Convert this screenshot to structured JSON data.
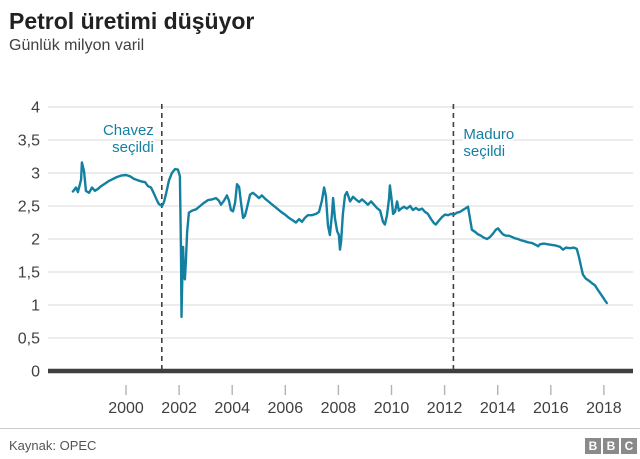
{
  "header": {
    "title": "Petrol üretimi düşüyor",
    "subtitle": "Günlük milyon varil"
  },
  "footer": {
    "source": "Kaynak: OPEC",
    "logo_letters": [
      "B",
      "B",
      "C"
    ]
  },
  "colors": {
    "line": "#1380a1",
    "annotation_text": "#1380a1",
    "grid": "#e0e0e0",
    "baseline": "#3f3f3f",
    "tick": "#b3b3b3",
    "axis_text": "#404040",
    "dashed_line": "#404040"
  },
  "chart_data": {
    "type": "line",
    "title": "Petrol üretimi düşüyor",
    "ylabel": "Günlük milyon varil",
    "xlabel": "",
    "x_range": [
      1997.05,
      2019.1
    ],
    "y_range": [
      0,
      4
    ],
    "grid": "horizontal",
    "legend": "none",
    "line_color": "#1380a1",
    "x_ticks": [
      {
        "value": 2000,
        "label": "2000"
      },
      {
        "value": 2002,
        "label": "2002"
      },
      {
        "value": 2004,
        "label": "2004"
      },
      {
        "value": 2006,
        "label": "2006"
      },
      {
        "value": 2008,
        "label": "2008"
      },
      {
        "value": 2010,
        "label": "2010"
      },
      {
        "value": 2012,
        "label": "2012"
      },
      {
        "value": 2014,
        "label": "2014"
      },
      {
        "value": 2016,
        "label": "2016"
      },
      {
        "value": 2018,
        "label": "2018"
      }
    ],
    "y_ticks": [
      {
        "value": 0,
        "label": "0"
      },
      {
        "value": 0.5,
        "label": "0,5"
      },
      {
        "value": 1,
        "label": "1"
      },
      {
        "value": 1.5,
        "label": "1,5"
      },
      {
        "value": 2,
        "label": "2"
      },
      {
        "value": 2.5,
        "label": "2,5"
      },
      {
        "value": 3,
        "label": "3"
      },
      {
        "value": 3.5,
        "label": "3,5"
      },
      {
        "value": 4,
        "label": "4"
      }
    ],
    "annotations": [
      {
        "label_lines": [
          "Chavez",
          "seçildi"
        ],
        "year": 2001.35,
        "align": "right"
      },
      {
        "label_lines": [
          "Maduro",
          "seçildi"
        ],
        "year": 2012.33,
        "align": "left"
      }
    ],
    "series": [
      {
        "name": "Petrol üretimi (günlük milyon varil)",
        "points": [
          [
            1998.0,
            2.72
          ],
          [
            1998.12,
            2.78
          ],
          [
            1998.19,
            2.71
          ],
          [
            1998.31,
            2.9
          ],
          [
            1998.34,
            3.16
          ],
          [
            1998.42,
            3.02
          ],
          [
            1998.49,
            2.73
          ],
          [
            1998.61,
            2.7
          ],
          [
            1998.72,
            2.78
          ],
          [
            1998.83,
            2.73
          ],
          [
            1998.95,
            2.76
          ],
          [
            1999.06,
            2.8
          ],
          [
            1999.21,
            2.84
          ],
          [
            1999.36,
            2.88
          ],
          [
            1999.51,
            2.91
          ],
          [
            1999.66,
            2.94
          ],
          [
            1999.81,
            2.96
          ],
          [
            2000.0,
            2.97
          ],
          [
            2000.15,
            2.95
          ],
          [
            2000.3,
            2.91
          ],
          [
            2000.45,
            2.89
          ],
          [
            2000.6,
            2.87
          ],
          [
            2000.72,
            2.86
          ],
          [
            2000.83,
            2.8
          ],
          [
            2000.94,
            2.78
          ],
          [
            2001.05,
            2.69
          ],
          [
            2001.17,
            2.58
          ],
          [
            2001.24,
            2.53
          ],
          [
            2001.36,
            2.5
          ],
          [
            2001.43,
            2.56
          ],
          [
            2001.51,
            2.69
          ],
          [
            2001.62,
            2.89
          ],
          [
            2001.73,
            3.0
          ],
          [
            2001.85,
            3.06
          ],
          [
            2001.96,
            3.05
          ],
          [
            2002.03,
            2.95
          ],
          [
            2002.07,
            1.8
          ],
          [
            2002.09,
            0.82
          ],
          [
            2002.11,
            1.2
          ],
          [
            2002.15,
            1.88
          ],
          [
            2002.18,
            1.45
          ],
          [
            2002.22,
            1.39
          ],
          [
            2002.26,
            1.7
          ],
          [
            2002.3,
            2.1
          ],
          [
            2002.37,
            2.4
          ],
          [
            2002.49,
            2.43
          ],
          [
            2002.64,
            2.45
          ],
          [
            2002.79,
            2.5
          ],
          [
            2002.94,
            2.55
          ],
          [
            2003.09,
            2.59
          ],
          [
            2003.24,
            2.6
          ],
          [
            2003.39,
            2.62
          ],
          [
            2003.5,
            2.58
          ],
          [
            2003.58,
            2.52
          ],
          [
            2003.69,
            2.58
          ],
          [
            2003.8,
            2.66
          ],
          [
            2003.88,
            2.58
          ],
          [
            2003.95,
            2.44
          ],
          [
            2004.03,
            2.42
          ],
          [
            2004.11,
            2.55
          ],
          [
            2004.18,
            2.83
          ],
          [
            2004.26,
            2.79
          ],
          [
            2004.33,
            2.55
          ],
          [
            2004.41,
            2.32
          ],
          [
            2004.48,
            2.35
          ],
          [
            2004.56,
            2.48
          ],
          [
            2004.67,
            2.67
          ],
          [
            2004.78,
            2.7
          ],
          [
            2004.9,
            2.66
          ],
          [
            2005.01,
            2.62
          ],
          [
            2005.12,
            2.66
          ],
          [
            2005.24,
            2.61
          ],
          [
            2005.39,
            2.56
          ],
          [
            2005.54,
            2.51
          ],
          [
            2005.69,
            2.46
          ],
          [
            2005.84,
            2.41
          ],
          [
            2005.99,
            2.37
          ],
          [
            2006.14,
            2.32
          ],
          [
            2006.29,
            2.28
          ],
          [
            2006.4,
            2.25
          ],
          [
            2006.52,
            2.3
          ],
          [
            2006.63,
            2.26
          ],
          [
            2006.74,
            2.32
          ],
          [
            2006.85,
            2.36
          ],
          [
            2007.0,
            2.36
          ],
          [
            2007.16,
            2.38
          ],
          [
            2007.27,
            2.41
          ],
          [
            2007.38,
            2.58
          ],
          [
            2007.46,
            2.78
          ],
          [
            2007.53,
            2.65
          ],
          [
            2007.61,
            2.2
          ],
          [
            2007.68,
            2.06
          ],
          [
            2007.76,
            2.38
          ],
          [
            2007.8,
            2.62
          ],
          [
            2007.87,
            2.32
          ],
          [
            2007.95,
            2.12
          ],
          [
            2008.02,
            2.06
          ],
          [
            2008.06,
            1.84
          ],
          [
            2008.1,
            1.96
          ],
          [
            2008.17,
            2.38
          ],
          [
            2008.25,
            2.66
          ],
          [
            2008.32,
            2.71
          ],
          [
            2008.44,
            2.57
          ],
          [
            2008.55,
            2.64
          ],
          [
            2008.66,
            2.6
          ],
          [
            2008.78,
            2.56
          ],
          [
            2008.89,
            2.6
          ],
          [
            2009.0,
            2.56
          ],
          [
            2009.11,
            2.52
          ],
          [
            2009.23,
            2.57
          ],
          [
            2009.34,
            2.52
          ],
          [
            2009.45,
            2.47
          ],
          [
            2009.57,
            2.43
          ],
          [
            2009.68,
            2.26
          ],
          [
            2009.75,
            2.22
          ],
          [
            2009.83,
            2.36
          ],
          [
            2009.91,
            2.62
          ],
          [
            2009.94,
            2.81
          ],
          [
            2010.02,
            2.55
          ],
          [
            2010.06,
            2.38
          ],
          [
            2010.13,
            2.41
          ],
          [
            2010.21,
            2.57
          ],
          [
            2010.28,
            2.43
          ],
          [
            2010.36,
            2.46
          ],
          [
            2010.47,
            2.49
          ],
          [
            2010.58,
            2.46
          ],
          [
            2010.7,
            2.5
          ],
          [
            2010.81,
            2.44
          ],
          [
            2010.92,
            2.47
          ],
          [
            2011.03,
            2.44
          ],
          [
            2011.15,
            2.46
          ],
          [
            2011.26,
            2.41
          ],
          [
            2011.37,
            2.38
          ],
          [
            2011.49,
            2.3
          ],
          [
            2011.6,
            2.24
          ],
          [
            2011.67,
            2.22
          ],
          [
            2011.79,
            2.28
          ],
          [
            2011.9,
            2.33
          ],
          [
            2012.01,
            2.37
          ],
          [
            2012.13,
            2.36
          ],
          [
            2012.24,
            2.38
          ],
          [
            2012.35,
            2.37
          ],
          [
            2012.47,
            2.4
          ],
          [
            2012.58,
            2.41
          ],
          [
            2012.69,
            2.44
          ],
          [
            2012.81,
            2.47
          ],
          [
            2012.88,
            2.49
          ],
          [
            2012.96,
            2.3
          ],
          [
            2013.03,
            2.14
          ],
          [
            2013.14,
            2.11
          ],
          [
            2013.26,
            2.07
          ],
          [
            2013.37,
            2.05
          ],
          [
            2013.48,
            2.02
          ],
          [
            2013.6,
            2.0
          ],
          [
            2013.71,
            2.03
          ],
          [
            2013.82,
            2.08
          ],
          [
            2013.93,
            2.14
          ],
          [
            2014.01,
            2.16
          ],
          [
            2014.09,
            2.12
          ],
          [
            2014.2,
            2.07
          ],
          [
            2014.31,
            2.05
          ],
          [
            2014.42,
            2.05
          ],
          [
            2014.54,
            2.03
          ],
          [
            2014.65,
            2.01
          ],
          [
            2014.76,
            2.0
          ],
          [
            2014.88,
            1.98
          ],
          [
            2014.99,
            1.97
          ],
          [
            2015.14,
            1.95
          ],
          [
            2015.29,
            1.94
          ],
          [
            2015.44,
            1.91
          ],
          [
            2015.52,
            1.89
          ],
          [
            2015.59,
            1.92
          ],
          [
            2015.74,
            1.93
          ],
          [
            2015.89,
            1.92
          ],
          [
            2016.04,
            1.91
          ],
          [
            2016.2,
            1.9
          ],
          [
            2016.35,
            1.88
          ],
          [
            2016.46,
            1.84
          ],
          [
            2016.57,
            1.87
          ],
          [
            2016.72,
            1.86
          ],
          [
            2016.87,
            1.87
          ],
          [
            2016.98,
            1.85
          ],
          [
            2017.06,
            1.73
          ],
          [
            2017.13,
            1.6
          ],
          [
            2017.21,
            1.46
          ],
          [
            2017.32,
            1.4
          ],
          [
            2017.43,
            1.37
          ],
          [
            2017.55,
            1.33
          ],
          [
            2017.66,
            1.3
          ],
          [
            2017.77,
            1.23
          ],
          [
            2017.89,
            1.16
          ],
          [
            2017.96,
            1.12
          ],
          [
            2018.04,
            1.07
          ],
          [
            2018.11,
            1.03
          ]
        ]
      }
    ]
  }
}
